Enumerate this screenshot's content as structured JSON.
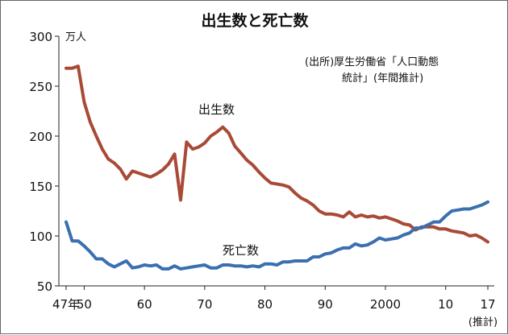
{
  "chart_data": {
    "type": "line",
    "title": "出生数と死亡数",
    "ylabel": "万人",
    "ylim": [
      50,
      300
    ],
    "yticks": [
      50,
      100,
      150,
      200,
      250,
      300
    ],
    "xlim": [
      1947,
      2017
    ],
    "xticks": [
      {
        "year": 1947,
        "label": "47年"
      },
      {
        "year": 1950,
        "label": "50"
      },
      {
        "year": 1960,
        "label": "60"
      },
      {
        "year": 1970,
        "label": "70"
      },
      {
        "year": 1980,
        "label": "80"
      },
      {
        "year": 1990,
        "label": "90"
      },
      {
        "year": 2000,
        "label": "2000"
      },
      {
        "year": 2010,
        "label": "10"
      },
      {
        "year": 2017,
        "label": "17"
      }
    ],
    "xnote": "(推計)",
    "source_line1": "(出所)厚生労働省「人口動態",
    "source_line2": "統計」(年間推計)",
    "series": [
      {
        "name": "出生数",
        "color": "#a94a36",
        "x": [
          1947,
          1948,
          1949,
          1950,
          1951,
          1952,
          1953,
          1954,
          1955,
          1956,
          1957,
          1958,
          1959,
          1960,
          1961,
          1962,
          1963,
          1964,
          1965,
          1966,
          1967,
          1968,
          1969,
          1970,
          1971,
          1972,
          1973,
          1974,
          1975,
          1976,
          1977,
          1978,
          1979,
          1980,
          1981,
          1982,
          1983,
          1984,
          1985,
          1986,
          1987,
          1988,
          1989,
          1990,
          1991,
          1992,
          1993,
          1994,
          1995,
          1996,
          1997,
          1998,
          1999,
          2000,
          2001,
          2002,
          2003,
          2004,
          2005,
          2006,
          2007,
          2008,
          2009,
          2010,
          2011,
          2012,
          2013,
          2014,
          2015,
          2016,
          2017
        ],
        "values": [
          268,
          268,
          270,
          234,
          214,
          200,
          187,
          177,
          173,
          167,
          157,
          165,
          163,
          161,
          159,
          162,
          166,
          172,
          182,
          136,
          194,
          187,
          189,
          193,
          200,
          204,
          209,
          203,
          190,
          183,
          176,
          171,
          164,
          158,
          153,
          152,
          151,
          149,
          143,
          138,
          135,
          131,
          125,
          122,
          122,
          121,
          119,
          124,
          119,
          121,
          119,
          120,
          118,
          119,
          117,
          115,
          112,
          111,
          106,
          109,
          109,
          109,
          107,
          107,
          105,
          104,
          103,
          100,
          101,
          98,
          94
        ]
      },
      {
        "name": "死亡数",
        "color": "#3a6fb0",
        "x": [
          1947,
          1948,
          1949,
          1950,
          1951,
          1952,
          1953,
          1954,
          1955,
          1956,
          1957,
          1958,
          1959,
          1960,
          1961,
          1962,
          1963,
          1964,
          1965,
          1966,
          1967,
          1968,
          1969,
          1970,
          1971,
          1972,
          1973,
          1974,
          1975,
          1976,
          1977,
          1978,
          1979,
          1980,
          1981,
          1982,
          1983,
          1984,
          1985,
          1986,
          1987,
          1988,
          1989,
          1990,
          1991,
          1992,
          1993,
          1994,
          1995,
          1996,
          1997,
          1998,
          1999,
          2000,
          2001,
          2002,
          2003,
          2004,
          2005,
          2006,
          2007,
          2008,
          2009,
          2010,
          2011,
          2012,
          2013,
          2014,
          2015,
          2016,
          2017
        ],
        "values": [
          114,
          95,
          95,
          90,
          84,
          77,
          77,
          72,
          69,
          72,
          75,
          68,
          69,
          71,
          70,
          71,
          67,
          67,
          70,
          67,
          68,
          69,
          70,
          71,
          68,
          68,
          71,
          71,
          70,
          70,
          69,
          70,
          69,
          72,
          72,
          71,
          74,
          74,
          75,
          75,
          75,
          79,
          79,
          82,
          83,
          86,
          88,
          88,
          92,
          90,
          91,
          94,
          98,
          96,
          97,
          98,
          101,
          103,
          108,
          108,
          111,
          114,
          114,
          120,
          125,
          126,
          127,
          127,
          129,
          131,
          134
        ]
      }
    ],
    "series_labels": {
      "births": "出生数",
      "deaths": "死亡数"
    }
  }
}
